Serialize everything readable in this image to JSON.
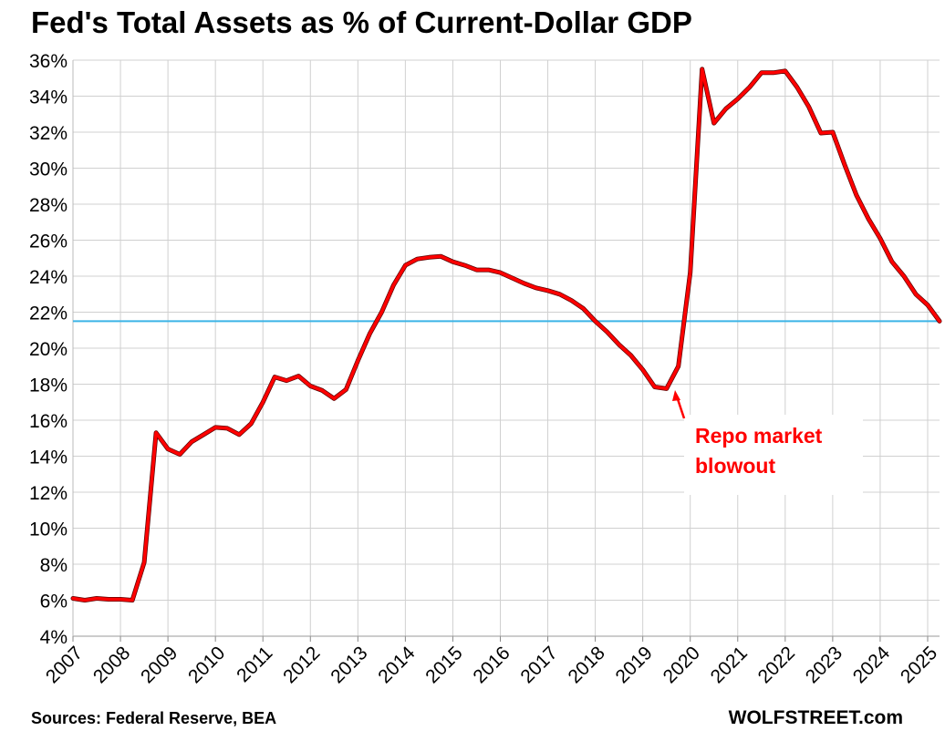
{
  "title": "Fed's Total Assets as % of Current-Dollar GDP",
  "sources": "Sources: Federal Reserve, BEA",
  "brand": "WOLFSTREET.com",
  "chart_data": {
    "type": "line",
    "title": "Fed's Total Assets as % of Current-Dollar GDP",
    "xlabel": "",
    "ylabel": "",
    "xlim": [
      2007,
      2025.25
    ],
    "ylim": [
      4,
      36
    ],
    "y_unit": "%",
    "grid": true,
    "y_ticks": [
      "4%",
      "6%",
      "8%",
      "10%",
      "12%",
      "14%",
      "16%",
      "18%",
      "20%",
      "22%",
      "24%",
      "26%",
      "28%",
      "30%",
      "32%",
      "34%",
      "36%"
    ],
    "x_ticks": [
      "2007",
      "2008",
      "2009",
      "2010",
      "2011",
      "2012",
      "2013",
      "2014",
      "2015",
      "2016",
      "2017",
      "2018",
      "2019",
      "2020",
      "2021",
      "2022",
      "2023",
      "2024",
      "2025"
    ],
    "series": [
      {
        "color": "#ff0000",
        "x": [
          2007.0,
          2007.25,
          2007.5,
          2007.75,
          2008.0,
          2008.25,
          2008.5,
          2008.75,
          2009.0,
          2009.25,
          2009.5,
          2009.75,
          2010.0,
          2010.25,
          2010.5,
          2010.75,
          2011.0,
          2011.25,
          2011.5,
          2011.75,
          2012.0,
          2012.25,
          2012.5,
          2012.75,
          2013.0,
          2013.25,
          2013.5,
          2013.75,
          2014.0,
          2014.25,
          2014.5,
          2014.75,
          2015.0,
          2015.25,
          2015.5,
          2015.75,
          2016.0,
          2016.25,
          2016.5,
          2016.75,
          2017.0,
          2017.25,
          2017.5,
          2017.75,
          2018.0,
          2018.25,
          2018.5,
          2018.75,
          2019.0,
          2019.25,
          2019.5,
          2019.75,
          2020.0,
          2020.25,
          2020.5,
          2020.75,
          2021.0,
          2021.25,
          2021.5,
          2021.75,
          2022.0,
          2022.25,
          2022.5,
          2022.75,
          2023.0,
          2023.25,
          2023.5,
          2023.75,
          2024.0,
          2024.25,
          2024.5,
          2024.75,
          2025.0,
          2025.25
        ],
        "values": [
          6.1,
          6.0,
          6.1,
          6.05,
          6.05,
          6.0,
          8.1,
          15.3,
          14.4,
          14.1,
          14.8,
          15.2,
          15.6,
          15.55,
          15.2,
          15.8,
          17.0,
          18.4,
          18.2,
          18.45,
          17.9,
          17.65,
          17.2,
          17.7,
          19.3,
          20.8,
          22.0,
          23.5,
          24.6,
          24.95,
          25.05,
          25.1,
          24.8,
          24.6,
          24.35,
          24.35,
          24.2,
          23.9,
          23.6,
          23.35,
          23.2,
          23.0,
          22.65,
          22.2,
          21.5,
          20.9,
          20.2,
          19.6,
          18.8,
          17.85,
          17.75,
          19.0,
          24.2,
          35.5,
          32.5,
          33.3,
          33.85,
          34.5,
          35.3,
          35.3,
          35.4,
          34.5,
          33.4,
          31.95,
          32.0,
          30.2,
          28.5,
          27.2,
          26.1,
          24.8,
          24.0,
          23.0,
          22.4,
          21.5
        ]
      }
    ],
    "reference_line": {
      "y": 21.5,
      "color": "#3cb4e6"
    },
    "annotations": [
      {
        "text_line1": "Repo market",
        "text_line2": "blowout",
        "color": "#ff0000",
        "arrow_target_x": 2019.75,
        "arrow_target_y": 17.75
      }
    ]
  }
}
